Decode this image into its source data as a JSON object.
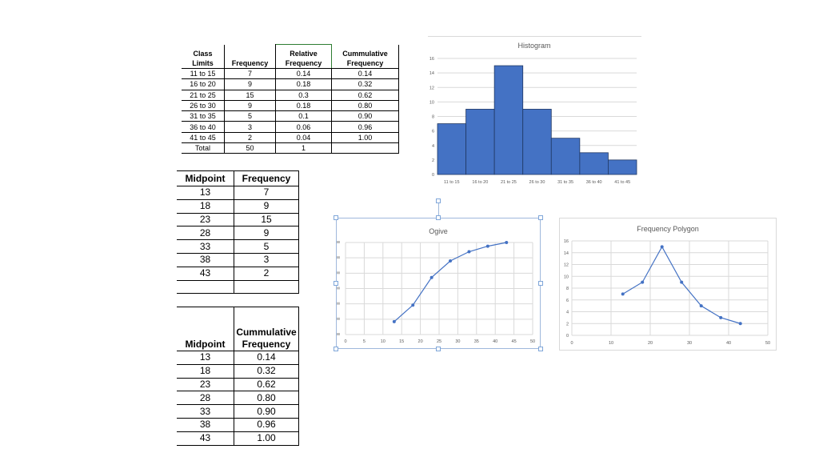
{
  "freq_table": {
    "headers": [
      "Class Limits",
      "Frequency",
      "Relative\nFrequency",
      "Cummulative\nFrequency"
    ],
    "rows": [
      [
        "11 to 15",
        "7",
        "0.14",
        "0.14"
      ],
      [
        "16 to 20",
        "9",
        "0.18",
        "0.32"
      ],
      [
        "21 to 25",
        "15",
        "0.3",
        "0.62"
      ],
      [
        "26 to 30",
        "9",
        "0.18",
        "0.80"
      ],
      [
        "31 to 35",
        "5",
        "0.1",
        "0.90"
      ],
      [
        "36 to 40",
        "3",
        "0.06",
        "0.96"
      ],
      [
        "41 to 45",
        "2",
        "0.04",
        "1.00"
      ],
      [
        "Total",
        "50",
        "1",
        ""
      ]
    ]
  },
  "midpoint_freq_table": {
    "headers": [
      "Midpoint",
      "Frequency"
    ],
    "rows": [
      [
        "13",
        "7"
      ],
      [
        "18",
        "9"
      ],
      [
        "23",
        "15"
      ],
      [
        "28",
        "9"
      ],
      [
        "33",
        "5"
      ],
      [
        "38",
        "3"
      ],
      [
        "43",
        "2"
      ],
      [
        "",
        ""
      ]
    ]
  },
  "midpoint_cum_table": {
    "headers": [
      "Midpoint",
      "Cummulative\nFrequency"
    ],
    "rows": [
      [
        "13",
        "0.14"
      ],
      [
        "18",
        "0.32"
      ],
      [
        "23",
        "0.62"
      ],
      [
        "28",
        "0.80"
      ],
      [
        "33",
        "0.90"
      ],
      [
        "38",
        "0.96"
      ],
      [
        "43",
        "1.00"
      ]
    ]
  },
  "chart_data": [
    {
      "type": "bar",
      "title": "Histogram",
      "categories": [
        "11 to 15",
        "16 to 20",
        "21 to 25",
        "26 to 30",
        "31 to 35",
        "36 to 40",
        "41 to 45"
      ],
      "values": [
        7,
        9,
        15,
        9,
        5,
        3,
        2
      ],
      "ylim": [
        0,
        16
      ],
      "yticks": [
        "0",
        "2",
        "4",
        "6",
        "8",
        "10",
        "12",
        "14",
        "16"
      ],
      "grid": true,
      "color": "#4472c4"
    },
    {
      "type": "scatter",
      "title": "Ogive",
      "x": [
        13,
        18,
        23,
        28,
        33,
        38,
        43
      ],
      "y": [
        0.14,
        0.32,
        0.62,
        0.8,
        0.9,
        0.96,
        1.0
      ],
      "xlim": [
        0,
        50
      ],
      "xticks": [
        "0",
        "5",
        "10",
        "15",
        "20",
        "25",
        "30",
        "35",
        "40",
        "45",
        "50"
      ],
      "ytick_count": 7,
      "grid": true,
      "lines": true,
      "color": "#4472c4"
    },
    {
      "type": "scatter",
      "title": "Frequency Polygon",
      "x": [
        13,
        18,
        23,
        28,
        33,
        38,
        43
      ],
      "y": [
        7,
        9,
        15,
        9,
        5,
        3,
        2
      ],
      "xlim": [
        0,
        50
      ],
      "ylim": [
        0,
        16
      ],
      "xticks": [
        "0",
        "10",
        "20",
        "30",
        "40",
        "50"
      ],
      "yticks": [
        "0",
        "2",
        "4",
        "6",
        "8",
        "10",
        "12",
        "14",
        "16"
      ],
      "grid": true,
      "lines": true,
      "color": "#4472c4"
    }
  ]
}
